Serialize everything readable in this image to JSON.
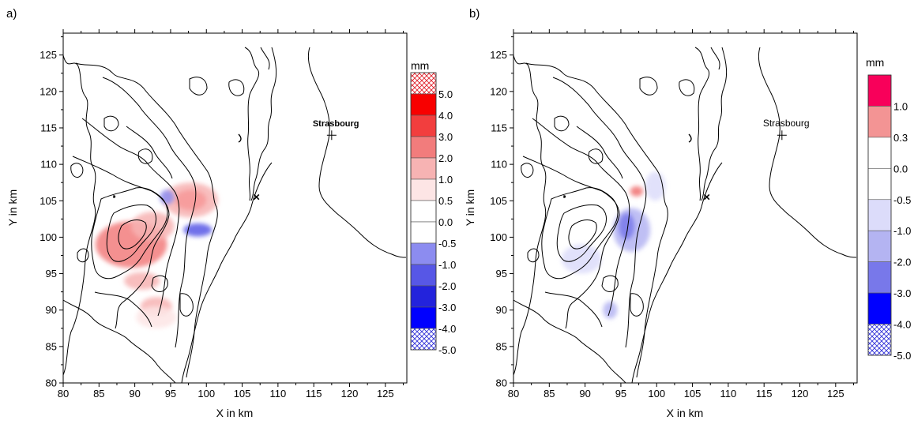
{
  "chart_data": [
    {
      "type": "heatmap",
      "panel_label": "a)",
      "xlabel": "X in km",
      "ylabel": "Y in km",
      "xlim": [
        80,
        128
      ],
      "ylim": [
        80,
        128
      ],
      "xticks": [
        80,
        85,
        90,
        95,
        100,
        105,
        110,
        115,
        120,
        125
      ],
      "yticks": [
        80,
        85,
        90,
        95,
        100,
        105,
        110,
        115,
        120,
        125
      ],
      "colorbar": {
        "unit": "mm",
        "levels": [
          "5.0",
          "4.0",
          "3.0",
          "2.0",
          "1.0",
          "0.5",
          "0.0",
          "-0.5",
          "-1.0",
          "-2.0",
          "-3.0",
          "-4.0",
          "-5.0"
        ],
        "bins": [
          {
            "color": "#ffffff",
            "hatch": "#e0202a"
          },
          {
            "color": "#f80000"
          },
          {
            "color": "#f23e3e"
          },
          {
            "color": "#f27c7c"
          },
          {
            "color": "#f7b3b3"
          },
          {
            "color": "#fde5e5"
          },
          {
            "color": "#ffffff"
          },
          {
            "color": "#ffffff"
          },
          {
            "color": "#8c8cf0"
          },
          {
            "color": "#5757e6"
          },
          {
            "color": "#2323dc"
          },
          {
            "color": "#0000ff"
          },
          {
            "color": "#ffffff",
            "hatch": "#3030d8"
          }
        ]
      },
      "city": {
        "name": "Strasbourg",
        "x": 117.5,
        "y": 114
      },
      "marker": {
        "symbol": "×",
        "x": 107,
        "y": 105.5
      },
      "anomalies": [
        {
          "x": 97.8,
          "y": 105.1,
          "rx": 2.2,
          "ry": 1.4,
          "value": 5.0,
          "color": "#f80000"
        },
        {
          "x": 97.8,
          "y": 105.1,
          "rx": 3.8,
          "ry": 2.4,
          "value": 1.0,
          "color": "#f7b3b3"
        },
        {
          "x": 89.5,
          "y": 99.0,
          "rx": 5.0,
          "ry": 3.2,
          "value": 1.5,
          "color": "#f27c7c"
        },
        {
          "x": 92.5,
          "y": 101.5,
          "rx": 3.0,
          "ry": 2.0,
          "value": 1.0,
          "color": "#f7b3b3"
        },
        {
          "x": 91.0,
          "y": 94.0,
          "rx": 2.5,
          "ry": 1.2,
          "value": 0.5,
          "color": "#f7b3b3"
        },
        {
          "x": 93.0,
          "y": 90.5,
          "rx": 2.2,
          "ry": 1.3,
          "value": 1.0,
          "color": "#f7b3b3"
        },
        {
          "x": 93.0,
          "y": 89.0,
          "rx": 2.8,
          "ry": 1.5,
          "value": 0.5,
          "color": "#fde5e5"
        },
        {
          "x": 98.8,
          "y": 101.0,
          "rx": 2.0,
          "ry": 0.9,
          "value": -2.0,
          "color": "#5757e6"
        },
        {
          "x": 94.5,
          "y": 105.5,
          "rx": 1.0,
          "ry": 1.0,
          "value": -1.0,
          "color": "#8c8cf0"
        }
      ]
    },
    {
      "type": "heatmap",
      "panel_label": "b)",
      "xlabel": "X in km",
      "ylabel": "Y in km",
      "xlim": [
        80,
        128
      ],
      "ylim": [
        80,
        128
      ],
      "xticks": [
        80,
        85,
        90,
        95,
        100,
        105,
        110,
        115,
        120,
        125
      ],
      "yticks": [
        80,
        85,
        90,
        95,
        100,
        105,
        110,
        115,
        120,
        125
      ],
      "colorbar": {
        "unit": "mm",
        "levels": [
          "1.0",
          "0.3",
          "0.0",
          "-0.5",
          "-1.0",
          "-2.0",
          "-3.0",
          "-4.0",
          "-5.0"
        ],
        "bins": [
          {
            "color": "#f8005a"
          },
          {
            "color": "#f39494"
          },
          {
            "color": "#ffffff"
          },
          {
            "color": "#ffffff"
          },
          {
            "color": "#dcdcfa"
          },
          {
            "color": "#b4b4f2"
          },
          {
            "color": "#7878ea"
          },
          {
            "color": "#0000ff"
          },
          {
            "color": "#ffffff",
            "hatch": "#3030d8"
          }
        ]
      },
      "city": {
        "name": "Strasbourg",
        "x": 117.5,
        "y": 114
      },
      "marker": {
        "symbol": "×",
        "x": 107,
        "y": 105.5
      },
      "anomalies": [
        {
          "x": 89.5,
          "y": 97.0,
          "rx": 2.8,
          "ry": 2.0,
          "value": -0.5,
          "color": "#dcdcfa"
        },
        {
          "x": 96.5,
          "y": 101.0,
          "rx": 2.6,
          "ry": 3.0,
          "value": -1.0,
          "color": "#b4b4f2"
        },
        {
          "x": 95.8,
          "y": 101.5,
          "rx": 1.1,
          "ry": 1.8,
          "value": -2.0,
          "color": "#7878ea"
        },
        {
          "x": 99.8,
          "y": 107.0,
          "rx": 1.4,
          "ry": 2.0,
          "value": -1.0,
          "color": "#dcdcfa"
        },
        {
          "x": 93.5,
          "y": 90.0,
          "rx": 1.0,
          "ry": 1.2,
          "value": -1.0,
          "color": "#b4b4f2"
        },
        {
          "x": 97.2,
          "y": 106.3,
          "rx": 0.9,
          "ry": 0.7,
          "value": 0.5,
          "color": "#f07070"
        }
      ]
    }
  ]
}
